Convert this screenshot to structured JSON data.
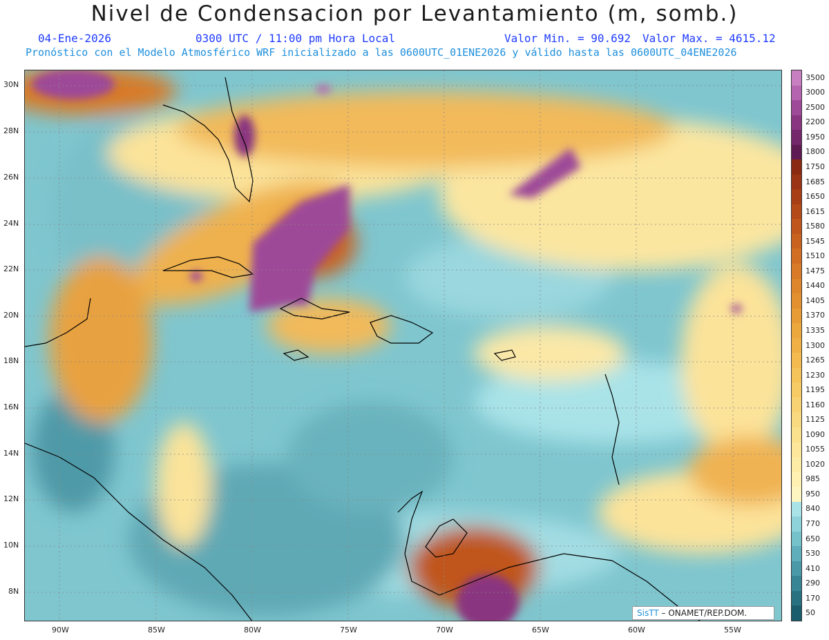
{
  "title": "Nivel de Condensacion por Levantamiento (m, somb.)",
  "date": "04-Ene-2026",
  "time": "0300 UTC / 11:00 pm Hora Local",
  "vmin": "Valor Min. = 90.692",
  "vmax": "Valor Max. = 4615.12",
  "forecast": "Pronóstico con el Modelo Atmosférico WRF inicializado a las 0600UTC_01ENE2026 y válido hasta las  0600UTC_04ENE2026",
  "lat_labels": [
    "30N",
    "28N",
    "26N",
    "24N",
    "22N",
    "20N",
    "18N",
    "16N",
    "14N",
    "12N",
    "10N",
    "8N"
  ],
  "lon_labels": [
    "90W",
    "85W",
    "80W",
    "75W",
    "70W",
    "65W",
    "60W",
    "55W"
  ],
  "colorbar": {
    "levels": [
      "3500",
      "3000",
      "2500",
      "2200",
      "1950",
      "1800",
      "1750",
      "1685",
      "1650",
      "1615",
      "1580",
      "1545",
      "1510",
      "1475",
      "1440",
      "1405",
      "1370",
      "1335",
      "1300",
      "1265",
      "1230",
      "1195",
      "1160",
      "1125",
      "1090",
      "1055",
      "1020",
      "985",
      "950",
      "840",
      "770",
      "650",
      "530",
      "410",
      "290",
      "170",
      "50"
    ],
    "colors": [
      "#c77fc2",
      "#b565b0",
      "#9e4a98",
      "#8a3680",
      "#74276b",
      "#5e1a52",
      "#8b2a12",
      "#9a3414",
      "#a83e16",
      "#b54a19",
      "#c0561c",
      "#c9621f",
      "#d16e23",
      "#d87a27",
      "#de862b",
      "#e39130",
      "#e89c36",
      "#eca73d",
      "#efb145",
      "#f2ba4f",
      "#f4c35a",
      "#f6cb66",
      "#f8d373",
      "#f9da80",
      "#fbe18d",
      "#fce79a",
      "#fdeca6",
      "#fef1b2",
      "#fef6c0",
      "#a9e3e8",
      "#8fd3da",
      "#76c2cb",
      "#5faebb",
      "#4a99a9",
      "#388595",
      "#287180",
      "#1a5d6c"
    ]
  },
  "credit": {
    "logo": "SisTT",
    "org": "ONAMET/REP.DOM."
  }
}
